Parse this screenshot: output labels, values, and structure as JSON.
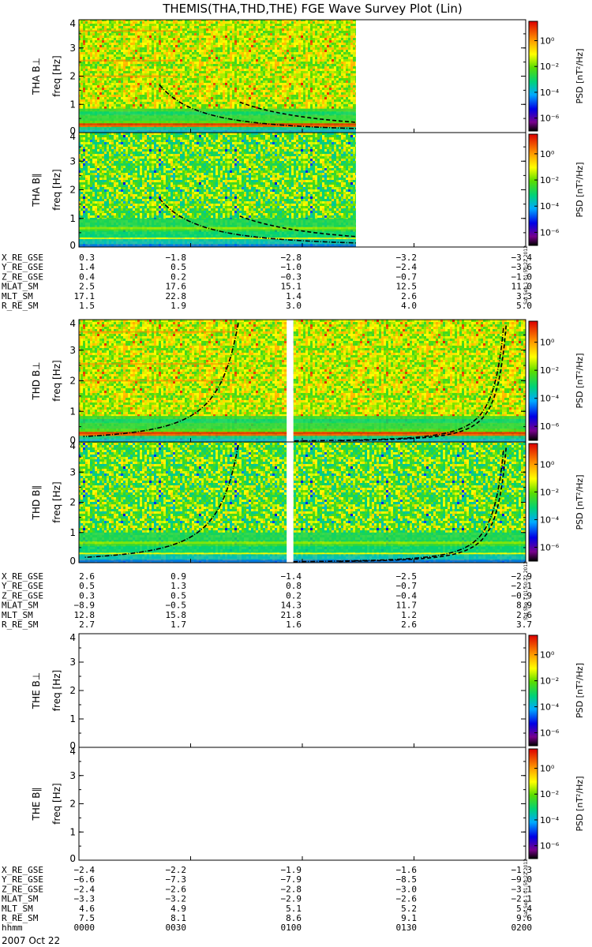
{
  "chart_data": {
    "type": "heatmap",
    "title": "THEMIS(THA,THD,THE) FGE Wave Survey Plot (Lin)",
    "date_label": "2007 Oct 22",
    "stamp_text": "Sat Sep  1 01:50:22 2012",
    "ylabel": "freq [Hz]",
    "ylim": [
      0,
      4
    ],
    "yticks": [
      "0",
      "1",
      "2",
      "3",
      "4"
    ],
    "colorbar": {
      "label": "PSD [nT²/Hz]",
      "ticks": [
        "10⁰",
        "10⁻²",
        "10⁻⁴",
        "10⁻⁶"
      ],
      "range_log10": [
        -7,
        1.5
      ]
    },
    "panels": [
      {
        "name": "THA B⊥",
        "probe": "THA",
        "data_coverage": [
          0,
          0.62
        ],
        "gaps": [],
        "active": true
      },
      {
        "name": "THA B∥",
        "probe": "THA",
        "data_coverage": [
          0,
          0.62
        ],
        "gaps": [],
        "active": true
      },
      {
        "name": "THD B⊥",
        "probe": "THD",
        "data_coverage": [
          0,
          1
        ],
        "gaps": [
          [
            0.465,
            0.48
          ]
        ],
        "active": true
      },
      {
        "name": "THD B∥",
        "probe": "THD",
        "data_coverage": [
          0,
          1
        ],
        "gaps": [
          [
            0.465,
            0.48
          ]
        ],
        "active": true
      },
      {
        "name": "THE B⊥",
        "probe": "THE",
        "data_coverage": [
          0,
          0
        ],
        "gaps": [],
        "active": false
      },
      {
        "name": "THE B∥",
        "probe": "THE",
        "data_coverage": [
          0,
          0
        ],
        "gaps": [],
        "active": false
      }
    ],
    "time_labels": [
      "hhmm",
      "0000",
      "0030",
      "0100",
      "0130",
      "0200"
    ],
    "ephemeris": [
      {
        "probe": "THA",
        "rows": [
          {
            "label": "X_RE_GSE",
            "values": [
              "0.3",
              "-1.8",
              "-2.8",
              "-3.2",
              "-3.4"
            ]
          },
          {
            "label": "Y_RE_GSE",
            "values": [
              "1.4",
              "0.5",
              "-1.0",
              "-2.4",
              "-3.6"
            ]
          },
          {
            "label": "Z_RE_GSE",
            "values": [
              "0.4",
              "0.2",
              "-0.3",
              "-0.7",
              "-1.0"
            ]
          },
          {
            "label": "MLAT_SM",
            "values": [
              "2.5",
              "17.6",
              "15.1",
              "12.5",
              "11.0"
            ]
          },
          {
            "label": "MLT_SM",
            "values": [
              "17.1",
              "22.8",
              "1.4",
              "2.6",
              "3.3"
            ]
          },
          {
            "label": "R_RE_SM",
            "values": [
              "1.5",
              "1.9",
              "3.0",
              "4.0",
              "5.0"
            ]
          }
        ]
      },
      {
        "probe": "THD",
        "rows": [
          {
            "label": "X_RE_GSE",
            "values": [
              "2.6",
              "0.9",
              "-1.4",
              "-2.5",
              "-2.9"
            ]
          },
          {
            "label": "Y_RE_GSE",
            "values": [
              "0.5",
              "1.3",
              "0.8",
              "-0.7",
              "-2.1"
            ]
          },
          {
            "label": "Z_RE_GSE",
            "values": [
              "0.3",
              "0.5",
              "0.2",
              "-0.4",
              "-0.9"
            ]
          },
          {
            "label": "MLAT_SM",
            "values": [
              "-8.9",
              "-0.5",
              "14.3",
              "11.7",
              "8.9"
            ]
          },
          {
            "label": "MLT_SM",
            "values": [
              "12.8",
              "15.8",
              "21.8",
              "1.2",
              "2.6"
            ]
          },
          {
            "label": "R_RE_SM",
            "values": [
              "2.7",
              "1.7",
              "1.6",
              "2.6",
              "3.7"
            ]
          }
        ]
      },
      {
        "probe": "THE",
        "rows": [
          {
            "label": "X_RE_GSE",
            "values": [
              "-2.4",
              "-2.2",
              "-1.9",
              "-1.6",
              "-1.3"
            ]
          },
          {
            "label": "Y_RE_GSE",
            "values": [
              "-6.6",
              "-7.3",
              "-7.9",
              "-8.5",
              "-9.0"
            ]
          },
          {
            "label": "Z_RE_GSE",
            "values": [
              "-2.4",
              "-2.6",
              "-2.8",
              "-3.0",
              "-3.1"
            ]
          },
          {
            "label": "MLAT_SM",
            "values": [
              "-3.3",
              "-3.2",
              "-2.9",
              "-2.6",
              "-2.1"
            ]
          },
          {
            "label": "MLT_SM",
            "values": [
              "4.6",
              "4.9",
              "5.1",
              "5.2",
              "5.4"
            ]
          },
          {
            "label": "R_RE_SM",
            "values": [
              "7.5",
              "8.1",
              "8.6",
              "9.1",
              "9.6"
            ]
          }
        ]
      }
    ]
  }
}
